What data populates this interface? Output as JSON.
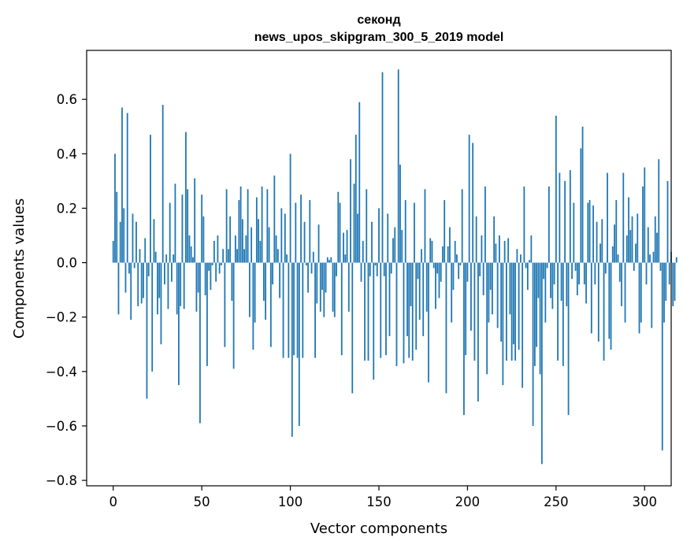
{
  "chart_data": {
    "type": "bar",
    "title_line1": "секонд",
    "title_line2": "news_upos_skipgram_300_5_2019 model",
    "xlabel": "Vector components",
    "ylabel": "Components values",
    "xlim": [
      -15,
      315
    ],
    "ylim": [
      -0.82,
      0.78
    ],
    "xticks": [
      0,
      50,
      100,
      150,
      200,
      250,
      300
    ],
    "xtick_labels": [
      "0",
      "50",
      "100",
      "150",
      "200",
      "250",
      "300"
    ],
    "yticks": [
      -0.8,
      -0.6,
      -0.4,
      -0.2,
      0.0,
      0.2,
      0.4,
      0.6
    ],
    "ytick_labels": [
      "−0.8",
      "−0.6",
      "−0.4",
      "−0.2",
      "0.0",
      "0.2",
      "0.4",
      "0.6"
    ],
    "bar_color": "#1f77b4",
    "grid": false,
    "values": [
      0.08,
      0.4,
      0.26,
      -0.19,
      0.15,
      0.57,
      0.2,
      -0.11,
      0.55,
      -0.04,
      -0.21,
      0.18,
      -0.02,
      0.15,
      -0.16,
      0.05,
      -0.15,
      -0.13,
      0.09,
      -0.5,
      -0.05,
      0.47,
      -0.4,
      0.16,
      0.04,
      -0.19,
      -0.13,
      -0.3,
      0.58,
      -0.08,
      0.03,
      -0.17,
      0.22,
      -0.07,
      0.03,
      0.29,
      -0.19,
      -0.45,
      -0.16,
      0.25,
      -0.17,
      0.48,
      0.27,
      0.1,
      0.06,
      0.02,
      0.31,
      -0.18,
      -0.11,
      -0.59,
      0.25,
      0.17,
      -0.12,
      -0.38,
      -0.03,
      -0.1,
      -0.01,
      0.08,
      -0.07,
      0.1,
      -0.04,
      -0.01,
      0.05,
      -0.31,
      0.27,
      0.05,
      0.17,
      -0.14,
      -0.39,
      0.1,
      0.05,
      0.23,
      0.28,
      0.16,
      0.05,
      0.1,
      0.27,
      -0.2,
      0.13,
      -0.32,
      -0.22,
      0.24,
      0.16,
      0.08,
      0.28,
      -0.14,
      -0.21,
      0.27,
      0.13,
      -0.31,
      -0.08,
      0.32,
      0.1,
      0.05,
      -0.13,
      0.2,
      -0.35,
      0.18,
      0.03,
      -0.35,
      0.4,
      -0.64,
      -0.34,
      0.22,
      -0.35,
      -0.6,
      0.25,
      -0.35,
      0.15,
      -0.01,
      -0.11,
      0.23,
      -0.04,
      0.04,
      -0.35,
      -0.15,
      0.14,
      -0.18,
      -0.1,
      -0.2,
      -0.11,
      0.02,
      0.01,
      0.02,
      -0.18,
      -0.2,
      -0.05,
      0.26,
      0.22,
      -0.34,
      0.11,
      0.03,
      0.12,
      -0.18,
      0.38,
      -0.48,
      0.29,
      0.47,
      0.18,
      0.59,
      -0.07,
      0.08,
      -0.36,
      0.27,
      -0.36,
      -0.05,
      0.15,
      -0.43,
      -0.01,
      -0.05,
      0.2,
      -0.35,
      0.7,
      -0.05,
      -0.34,
      0.18,
      -0.27,
      -0.04,
      0.09,
      0.13,
      -0.38,
      0.71,
      0.36,
      0.12,
      -0.37,
      0.23,
      -0.27,
      -0.35,
      -0.16,
      -0.36,
      0.22,
      -0.32,
      -0.06,
      -0.21,
      0.05,
      -0.27,
      0.27,
      -0.18,
      -0.44,
      0.09,
      0.08,
      -0.02,
      -0.17,
      -0.04,
      -0.13,
      -0.07,
      0.06,
      0.23,
      -0.48,
      0.06,
      0.13,
      -0.22,
      -0.1,
      0.08,
      0.03,
      -0.06,
      -0.01,
      0.27,
      -0.56,
      -0.34,
      -0.07,
      0.47,
      -0.25,
      0.44,
      -0.36,
      0.17,
      -0.51,
      -0.05,
      0.1,
      -0.12,
      0.28,
      -0.41,
      -0.22,
      -0.1,
      -0.19,
      0.17,
      0.07,
      -0.24,
      0.1,
      -0.29,
      -0.45,
      0.08,
      -0.36,
      0.09,
      -0.19,
      -0.36,
      -0.3,
      -0.36,
      0.05,
      -0.32,
      0.03,
      -0.46,
      0.28,
      -0.02,
      -0.1,
      0.01,
      0.1,
      -0.6,
      -0.38,
      -0.31,
      -0.13,
      -0.41,
      -0.74,
      -0.06,
      -0.22,
      -0.02,
      0.28,
      -0.13,
      -0.17,
      -0.08,
      0.54,
      -0.36,
      0.33,
      -0.14,
      -0.38,
      0.3,
      -0.16,
      -0.56,
      0.34,
      -0.06,
      0.22,
      -0.03,
      -0.12,
      -0.08,
      0.42,
      0.5,
      -0.08,
      -0.15,
      0.22,
      0.23,
      -0.26,
      0.21,
      -0.08,
      0.15,
      -0.29,
      0.07,
      0.16,
      -0.36,
      -0.04,
      0.33,
      -0.28,
      -0.32,
      0.06,
      0.14,
      0.23,
      0.03,
      -0.07,
      -0.16,
      0.33,
      -0.22,
      0.1,
      0.24,
      0.12,
      0.17,
      -0.03,
      0.07,
      0.18,
      -0.26,
      -0.22,
      0.28,
      0.35,
      -0.08,
      0.13,
      0.03,
      -0.24,
      0.04,
      0.17,
      0.11,
      0.38,
      -0.03,
      -0.69,
      -0.22,
      -0.14,
      0.3,
      -0.08,
      0.04,
      -0.16,
      -0.14,
      0.02
    ]
  }
}
